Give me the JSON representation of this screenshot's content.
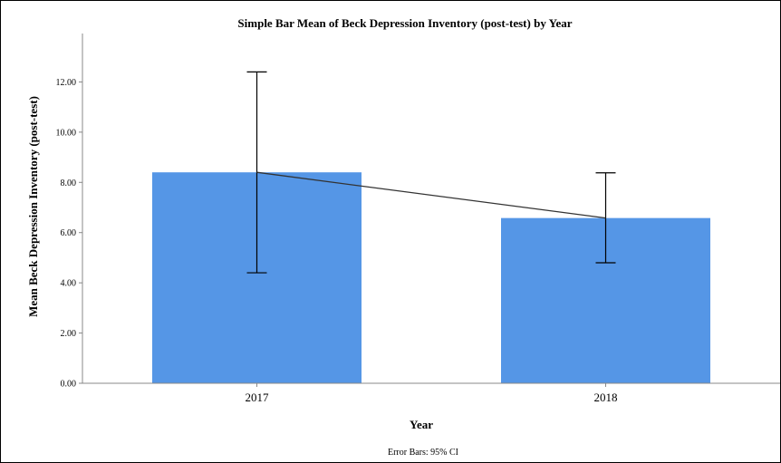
{
  "chart_data": {
    "type": "bar",
    "title": "Simple Bar Mean of Beck Depression Inventory (post-test) by Year",
    "xlabel": "Year",
    "ylabel": "Mean Beck Depression Inventory (post-test)",
    "categories": [
      "2017",
      "2018"
    ],
    "values": [
      8.4,
      6.58
    ],
    "error_bars": {
      "label": "Error Bars: 95% CI",
      "lower": [
        4.4,
        4.8
      ],
      "upper": [
        12.4,
        8.38
      ]
    },
    "connecting_line": true,
    "ylim": [
      0,
      14
    ],
    "yticks": [
      "0.00",
      "2.00",
      "4.00",
      "6.00",
      "8.00",
      "10.00",
      "12.00"
    ],
    "grid": false,
    "colors": {
      "bar": "#5596e6",
      "line": "#333333",
      "axis": "#888888"
    }
  }
}
